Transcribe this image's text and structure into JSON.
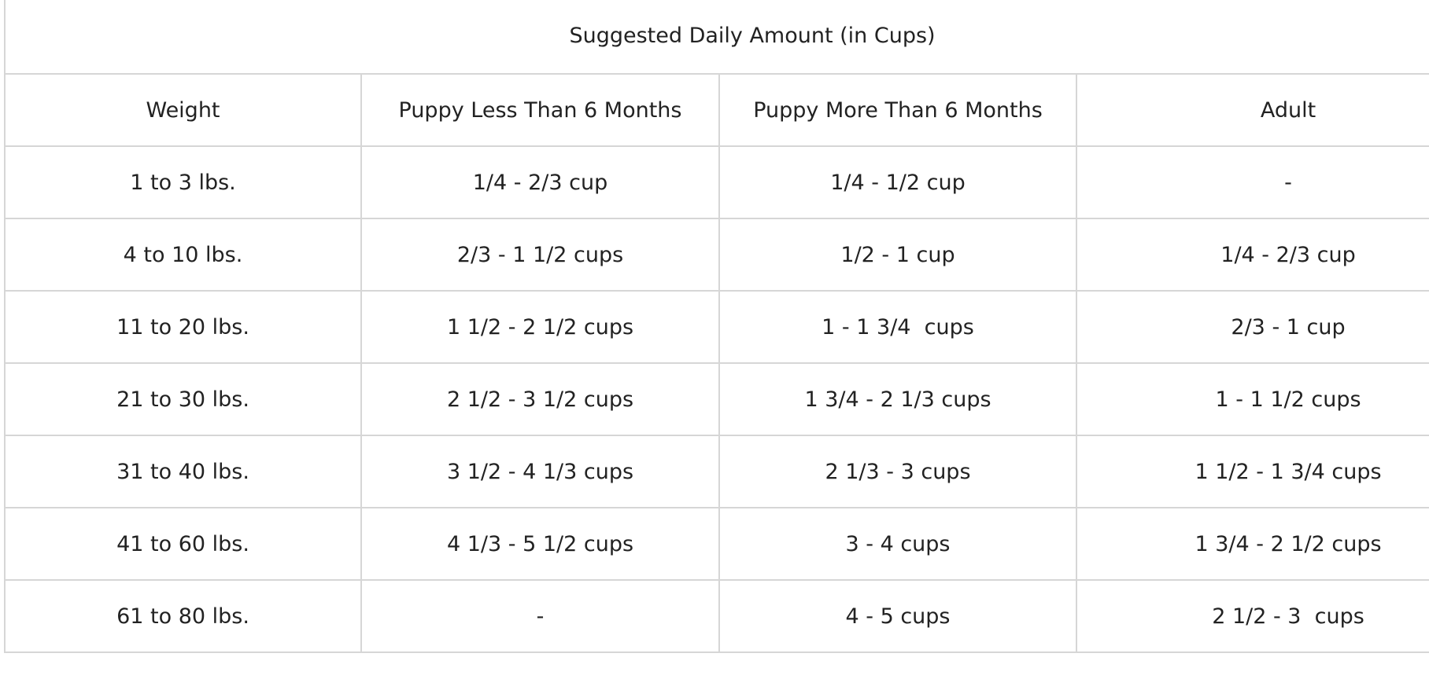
{
  "table": {
    "caption": "Suggested Daily Amount (in Cups)",
    "headers": [
      "Weight",
      "Puppy Less Than 6 Months",
      "Puppy More Than 6 Months",
      "Adult"
    ],
    "rows": [
      [
        "1 to 3 lbs.",
        "1/4 - 2/3 cup",
        "1/4 - 1/2 cup",
        "-"
      ],
      [
        "4 to 10 lbs.",
        "2/3 - 1 1/2 cups",
        "1/2 - 1 cup",
        "1/4 - 2/3 cup"
      ],
      [
        "11 to 20 lbs.",
        "1 1/2 - 2 1/2 cups",
        "1 - 1 3/4  cups",
        "2/3 - 1 cup"
      ],
      [
        "21 to 30 lbs.",
        "2 1/2 - 3 1/2 cups",
        "1 3/4 - 2 1/3 cups",
        "1 - 1 1/2 cups"
      ],
      [
        "31 to 40 lbs.",
        "3 1/2 - 4 1/3 cups",
        "2 1/3 - 3 cups",
        "1 1/2 - 1 3/4 cups"
      ],
      [
        "41 to 60 lbs.",
        "4 1/3 - 5 1/2 cups",
        "3 - 4 cups",
        "1 3/4 - 2 1/2 cups"
      ],
      [
        "61 to 80 lbs.",
        "-",
        "4 - 5 cups",
        "2 1/2 - 3  cups"
      ]
    ]
  }
}
